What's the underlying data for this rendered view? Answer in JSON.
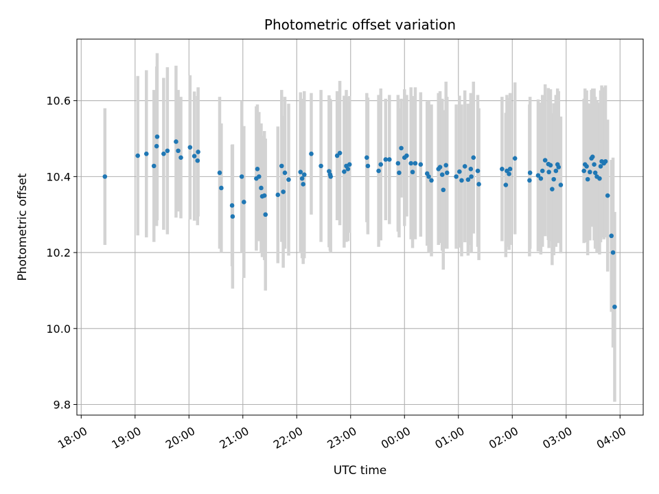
{
  "chart_data": {
    "type": "scatter",
    "title": "Photometric offset variation",
    "xlabel": "UTC time",
    "ylabel": "Photometric offset",
    "xlim": [
      -0.08,
      10.43
    ],
    "ylim": [
      9.772,
      10.762
    ],
    "grid": true,
    "x_ticks": [
      {
        "value": 0,
        "label": "18:00"
      },
      {
        "value": 1,
        "label": "19:00"
      },
      {
        "value": 2,
        "label": "20:00"
      },
      {
        "value": 3,
        "label": "21:00"
      },
      {
        "value": 4,
        "label": "22:00"
      },
      {
        "value": 5,
        "label": "23:00"
      },
      {
        "value": 6,
        "label": "00:00"
      },
      {
        "value": 7,
        "label": "01:00"
      },
      {
        "value": 8,
        "label": "02:00"
      },
      {
        "value": 9,
        "label": "03:00"
      },
      {
        "value": 10,
        "label": "04:00"
      }
    ],
    "y_ticks": [
      {
        "value": 9.8,
        "label": "9.8"
      },
      {
        "value": 10.0,
        "label": "10.0"
      },
      {
        "value": 10.2,
        "label": "10.2"
      },
      {
        "value": 10.4,
        "label": "10.4"
      },
      {
        "value": 10.6,
        "label": "10.6"
      }
    ],
    "colors": {
      "point": "#1f77b4",
      "errorbar": "#d3d3d3",
      "grid": "#b0b0b0"
    },
    "series": [
      {
        "name": "offset",
        "x": [
          0.44,
          1.05,
          1.21,
          1.35,
          1.4,
          1.41,
          1.53,
          1.6,
          1.76,
          1.8,
          1.85,
          2.02,
          2.1,
          2.16,
          2.17,
          2.57,
          2.6,
          2.8,
          2.81,
          2.98,
          3.02,
          3.25,
          3.27,
          3.3,
          3.34,
          3.36,
          3.4,
          3.42,
          3.65,
          3.72,
          3.75,
          3.78,
          3.85,
          4.07,
          4.1,
          4.12,
          4.14,
          4.27,
          4.45,
          4.6,
          4.62,
          4.63,
          4.75,
          4.8,
          4.88,
          4.92,
          4.95,
          4.98,
          5.3,
          5.32,
          5.52,
          5.56,
          5.65,
          5.72,
          5.88,
          5.9,
          5.94,
          6.0,
          6.04,
          6.12,
          6.15,
          6.2,
          6.3,
          6.42,
          6.45,
          6.5,
          6.63,
          6.66,
          6.7,
          6.72,
          6.77,
          6.79,
          6.96,
          7.02,
          7.06,
          7.12,
          7.18,
          7.23,
          7.24,
          7.28,
          7.36,
          7.38,
          7.81,
          7.88,
          7.9,
          7.94,
          7.96,
          8.05,
          8.32,
          8.33,
          8.48,
          8.53,
          8.56,
          8.61,
          8.67,
          8.68,
          8.71,
          8.74,
          8.77,
          8.81,
          8.84,
          8.86,
          8.9,
          9.33,
          9.35,
          9.38,
          9.4,
          9.44,
          9.47,
          9.49,
          9.52,
          9.54,
          9.57,
          9.62,
          9.64,
          9.66,
          9.7,
          9.73,
          9.77,
          9.84,
          9.87,
          9.9
        ],
        "y": [
          10.4,
          10.455,
          10.46,
          10.428,
          10.48,
          10.505,
          10.46,
          10.468,
          10.492,
          10.468,
          10.45,
          10.477,
          10.454,
          10.442,
          10.465,
          10.41,
          10.37,
          10.324,
          10.295,
          10.4,
          10.333,
          10.395,
          10.42,
          10.4,
          10.37,
          10.348,
          10.35,
          10.3,
          10.352,
          10.428,
          10.36,
          10.41,
          10.392,
          10.412,
          10.395,
          10.38,
          10.405,
          10.46,
          10.428,
          10.414,
          10.405,
          10.4,
          10.455,
          10.462,
          10.413,
          10.428,
          10.42,
          10.432,
          10.45,
          10.428,
          10.415,
          10.432,
          10.445,
          10.445,
          10.435,
          10.41,
          10.475,
          10.45,
          10.455,
          10.435,
          10.412,
          10.435,
          10.432,
          10.408,
          10.4,
          10.39,
          10.42,
          10.425,
          10.405,
          10.365,
          10.43,
          10.41,
          10.4,
          10.413,
          10.39,
          10.427,
          10.392,
          10.42,
          10.4,
          10.45,
          10.415,
          10.38,
          10.42,
          10.378,
          10.415,
          10.407,
          10.42,
          10.448,
          10.39,
          10.41,
          10.403,
          10.395,
          10.415,
          10.443,
          10.433,
          10.412,
          10.43,
          10.367,
          10.393,
          10.415,
          10.432,
          10.425,
          10.378,
          10.415,
          10.432,
          10.427,
          10.393,
          10.412,
          10.448,
          10.452,
          10.432,
          10.41,
          10.4,
          10.395,
          10.427,
          10.44,
          10.435,
          10.44,
          10.35,
          10.244,
          10.2,
          10.057
        ],
        "err": [
          0.18,
          0.21,
          0.22,
          0.2,
          0.21,
          0.22,
          0.2,
          0.22,
          0.2,
          0.16,
          0.16,
          0.19,
          0.17,
          0.17,
          0.17,
          0.2,
          0.17,
          0.16,
          0.19,
          0.2,
          0.2,
          0.19,
          0.17,
          0.17,
          0.17,
          0.16,
          0.17,
          0.2,
          0.18,
          0.2,
          0.2,
          0.2,
          0.2,
          0.21,
          0.21,
          0.21,
          0.22,
          0.16,
          0.2,
          0.2,
          0.2,
          0.2,
          0.17,
          0.19,
          0.2,
          0.2,
          0.19,
          0.18,
          0.17,
          0.18,
          0.2,
          0.2,
          0.16,
          0.17,
          0.18,
          0.17,
          0.13,
          0.18,
          0.16,
          0.2,
          0.2,
          0.2,
          0.19,
          0.19,
          0.2,
          0.2,
          0.2,
          0.2,
          0.2,
          0.21,
          0.22,
          0.2,
          0.19,
          0.2,
          0.2,
          0.2,
          0.2,
          0.2,
          0.2,
          0.2,
          0.2,
          0.2,
          0.19,
          0.19,
          0.2,
          0.2,
          0.2,
          0.2,
          0.2,
          0.2,
          0.2,
          0.2,
          0.2,
          0.2,
          0.2,
          0.2,
          0.2,
          0.2,
          0.2,
          0.2,
          0.2,
          0.2,
          0.18,
          0.19,
          0.2,
          0.2,
          0.2,
          0.18,
          0.18,
          0.18,
          0.2,
          0.2,
          0.2,
          0.2,
          0.2,
          0.2,
          0.2,
          0.2,
          0.2,
          0.2,
          0.25,
          0.25
        ]
      }
    ]
  }
}
